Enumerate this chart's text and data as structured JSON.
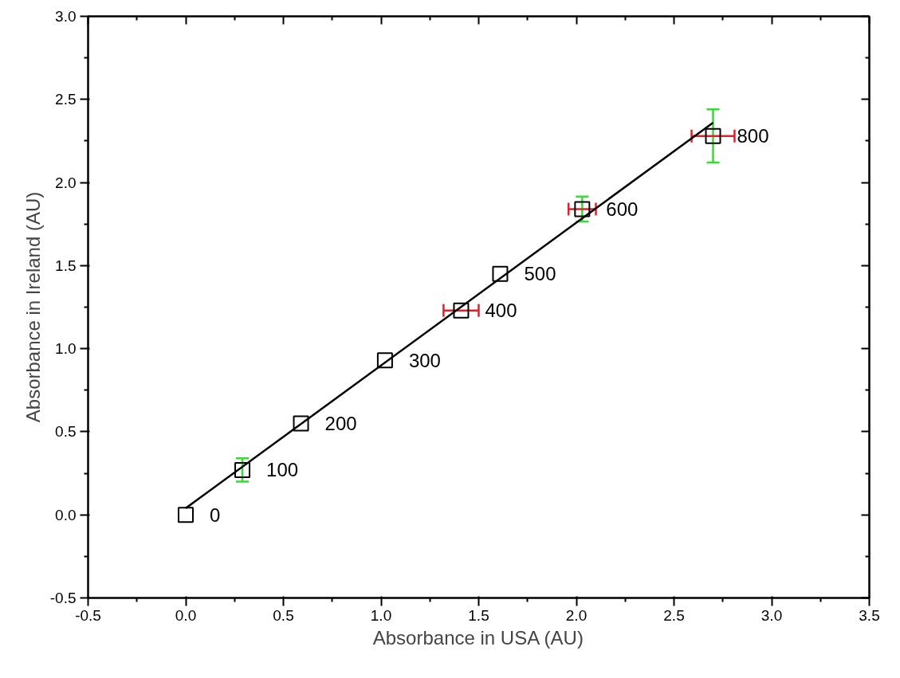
{
  "chart_data": {
    "type": "scatter",
    "xlabel": "Absorbance in USA (AU)",
    "ylabel": "Absorbance in Ireland (AU)",
    "xlim": [
      -0.5,
      3.5
    ],
    "ylim": [
      -0.5,
      3.0
    ],
    "xticks": [
      -0.5,
      {
        "value": 0,
        "label": "0.0"
      },
      0.5,
      {
        "value": 1,
        "label": "1.0"
      },
      1.5,
      {
        "value": 2,
        "label": "2.0"
      },
      2.5,
      {
        "value": 3,
        "label": "3.0"
      },
      3.5
    ],
    "yticks": [
      -0.5,
      {
        "value": 0,
        "label": "0.0"
      },
      0.5,
      {
        "value": 1,
        "label": "1.0"
      },
      1.5,
      {
        "value": 2,
        "label": "2.0"
      },
      2.5,
      {
        "value": 3,
        "label": "3.0"
      }
    ],
    "grid": false,
    "series": [
      {
        "marker": "square",
        "color": "#000000",
        "x": [
          0.0,
          0.29,
          0.59,
          1.02,
          1.41,
          1.61,
          2.03,
          2.7
        ],
        "values": [
          0.0,
          0.27,
          0.55,
          0.93,
          1.23,
          1.45,
          1.84,
          2.28
        ],
        "errors": [
          null,
          0.07,
          null,
          null,
          null,
          null,
          0.075,
          0.16
        ],
        "xerrors": [
          null,
          null,
          null,
          null,
          0.09,
          null,
          0.07,
          0.11
        ]
      },
      {
        "type": "line",
        "marker": "none",
        "color": "#000000",
        "x": [
          0.0,
          2.7
        ],
        "values": [
          0.04,
          2.36
        ]
      }
    ],
    "annotations": [
      {
        "text": "0",
        "x": 0.0,
        "y": 0.0
      },
      {
        "text": "100",
        "x": 0.29,
        "y": 0.27
      },
      {
        "text": "200",
        "x": 0.59,
        "y": 0.55
      },
      {
        "text": "300",
        "x": 1.02,
        "y": 0.93
      },
      {
        "text": "400",
        "x": 1.41,
        "y": 1.23
      },
      {
        "text": "500",
        "x": 1.61,
        "y": 1.45
      },
      {
        "text": "600",
        "x": 2.03,
        "y": 1.84
      },
      {
        "text": "800",
        "x": 2.7,
        "y": 2.28
      }
    ]
  }
}
